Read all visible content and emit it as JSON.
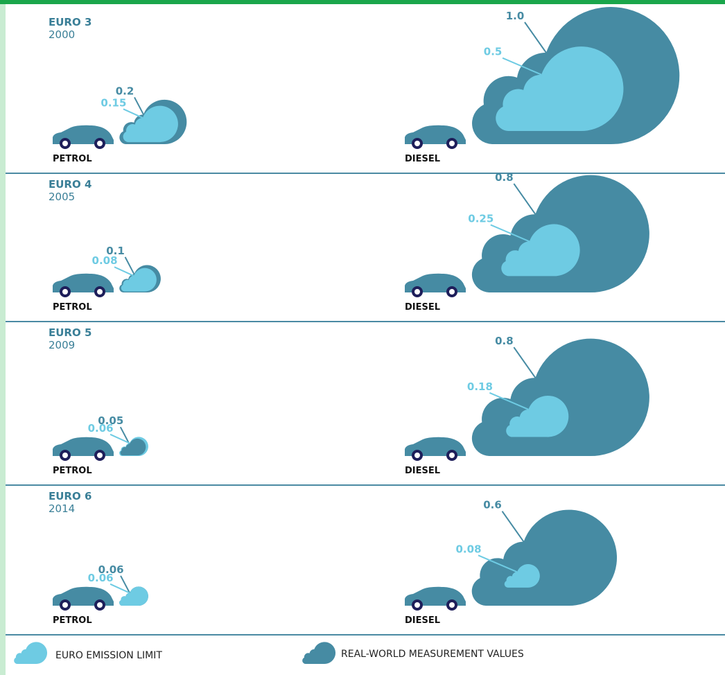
{
  "rows": [
    {
      "standard": "EURO 3",
      "year": "2000",
      "petrol": {
        "name": "PETROL",
        "limit": 0.15,
        "real": 0.2
      },
      "diesel": {
        "name": "DIESEL",
        "limit": 0.5,
        "real": 1,
        "real_label": "1.0"
      }
    },
    {
      "standard": "EURO 4",
      "year": "2005",
      "petrol": {
        "name": "PETROL",
        "limit": 0.08,
        "real": 0.1
      },
      "diesel": {
        "name": "DIESEL",
        "limit": 0.25,
        "real": 0.8
      }
    },
    {
      "standard": "EURO 5",
      "year": "2009",
      "petrol": {
        "name": "PETROL",
        "limit": 0.06,
        "real": 0.05
      },
      "diesel": {
        "name": "DIESEL",
        "limit": 0.18,
        "real": 0.8
      }
    },
    {
      "standard": "EURO 6",
      "year": "2014",
      "petrol": {
        "name": "PETROL",
        "limit": 0.06,
        "real": 0.06
      },
      "diesel": {
        "name": "DIESEL",
        "limit": 0.08,
        "real": 0.6
      }
    }
  ],
  "legend": {
    "limit": "EURO EMISSION LIMIT",
    "real": "REAL-WORLD MEASUREMENT VALUES"
  },
  "colors": {
    "limit": "#6ecbe3",
    "real": "#468ba3"
  }
}
